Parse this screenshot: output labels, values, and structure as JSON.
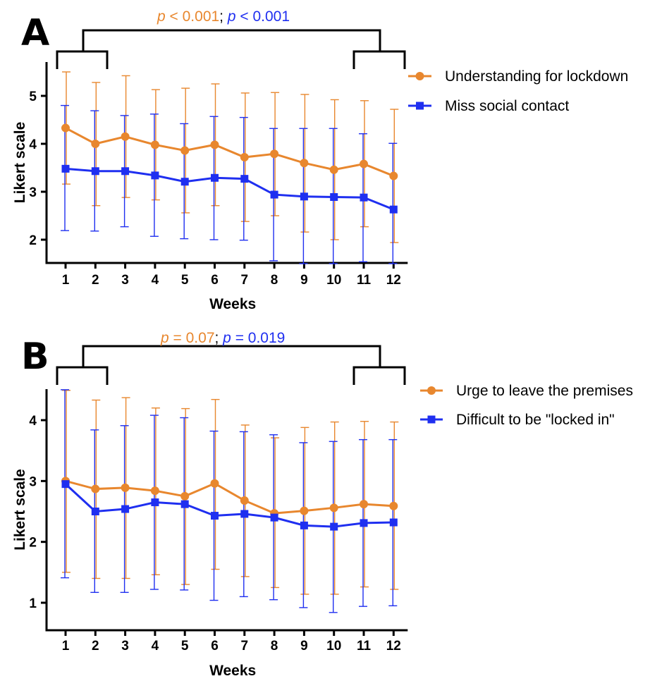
{
  "chart_data": [
    {
      "type": "line",
      "panel": "A",
      "xlabel": "Weeks",
      "ylabel": "Likert scale",
      "x": [
        1,
        2,
        3,
        4,
        5,
        6,
        7,
        8,
        9,
        10,
        11,
        12
      ],
      "ylim": [
        1.5,
        5.7
      ],
      "yticks": [
        2,
        3,
        4,
        5
      ],
      "significance": {
        "parts": [
          {
            "text": "p",
            "italic": true,
            "color": "#E8872E"
          },
          {
            "text": " < 0.001",
            "italic": false,
            "color": "#E8872E"
          },
          {
            "text": "; ",
            "italic": false,
            "color": "#000000"
          },
          {
            "text": "p",
            "italic": true,
            "color": "#1F2FF0"
          },
          {
            "text": " < 0.001",
            "italic": false,
            "color": "#1F2FF0"
          }
        ]
      },
      "legend_position": "right",
      "series": [
        {
          "name": "Understanding for lockdown",
          "color": "#E8872E",
          "marker": "circle",
          "values": [
            4.33,
            4.0,
            4.15,
            3.98,
            3.86,
            3.98,
            3.72,
            3.79,
            3.6,
            3.46,
            3.58,
            3.33
          ],
          "err_high": [
            5.5,
            5.28,
            5.42,
            5.13,
            5.16,
            5.25,
            5.06,
            5.07,
            5.03,
            4.92,
            4.9,
            4.72
          ],
          "err_low": [
            3.16,
            2.71,
            2.88,
            2.83,
            2.56,
            2.71,
            2.38,
            2.5,
            2.16,
            2.0,
            2.27,
            1.94
          ]
        },
        {
          "name": "Miss social contact",
          "color": "#1F2FF0",
          "marker": "square",
          "values": [
            3.48,
            3.43,
            3.43,
            3.34,
            3.21,
            3.29,
            3.27,
            2.94,
            2.9,
            2.89,
            2.88,
            2.63
          ],
          "err_high": [
            4.8,
            4.69,
            4.59,
            4.62,
            4.42,
            4.57,
            4.55,
            4.32,
            4.32,
            4.32,
            4.21,
            4.01
          ],
          "err_low": [
            2.19,
            2.18,
            2.27,
            2.07,
            2.02,
            2.0,
            1.99,
            1.56,
            1.5,
            1.5,
            1.54,
            1.5
          ]
        }
      ]
    },
    {
      "type": "line",
      "panel": "B",
      "xlabel": "Weeks",
      "ylabel": "Likert scale",
      "x": [
        1,
        2,
        3,
        4,
        5,
        6,
        7,
        8,
        9,
        10,
        11,
        12
      ],
      "ylim": [
        0.5,
        4.5
      ],
      "yticks": [
        1,
        2,
        3,
        4
      ],
      "significance": {
        "parts": [
          {
            "text": "p",
            "italic": true,
            "color": "#E8872E"
          },
          {
            "text": " = 0.07",
            "italic": false,
            "color": "#E8872E"
          },
          {
            "text": "; ",
            "italic": false,
            "color": "#000000"
          },
          {
            "text": "p",
            "italic": true,
            "color": "#1F2FF0"
          },
          {
            "text": " = 0.019",
            "italic": false,
            "color": "#1F2FF0"
          }
        ]
      },
      "legend_position": "right",
      "series": [
        {
          "name": "Urge to leave the premises",
          "color": "#E8872E",
          "marker": "circle",
          "values": [
            3.0,
            2.87,
            2.89,
            2.84,
            2.75,
            2.96,
            2.68,
            2.47,
            2.51,
            2.56,
            2.62,
            2.59
          ],
          "err_high": [
            4.49,
            4.33,
            4.37,
            4.2,
            4.19,
            4.34,
            3.92,
            3.71,
            3.88,
            3.97,
            3.98,
            3.97
          ],
          "err_low": [
            1.5,
            1.4,
            1.4,
            1.46,
            1.3,
            1.55,
            1.43,
            1.25,
            1.14,
            1.14,
            1.26,
            1.22
          ]
        },
        {
          "name": "Difficult to be \"locked in\"",
          "color": "#1F2FF0",
          "marker": "square",
          "values": [
            2.95,
            2.5,
            2.54,
            2.65,
            2.62,
            2.43,
            2.46,
            2.4,
            2.27,
            2.25,
            2.31,
            2.32
          ],
          "err_high": [
            4.5,
            3.84,
            3.91,
            4.08,
            4.04,
            3.82,
            3.81,
            3.76,
            3.63,
            3.65,
            3.68,
            3.68
          ],
          "err_low": [
            1.41,
            1.17,
            1.17,
            1.22,
            1.21,
            1.04,
            1.1,
            1.05,
            0.92,
            0.84,
            0.94,
            0.95
          ]
        }
      ]
    }
  ]
}
